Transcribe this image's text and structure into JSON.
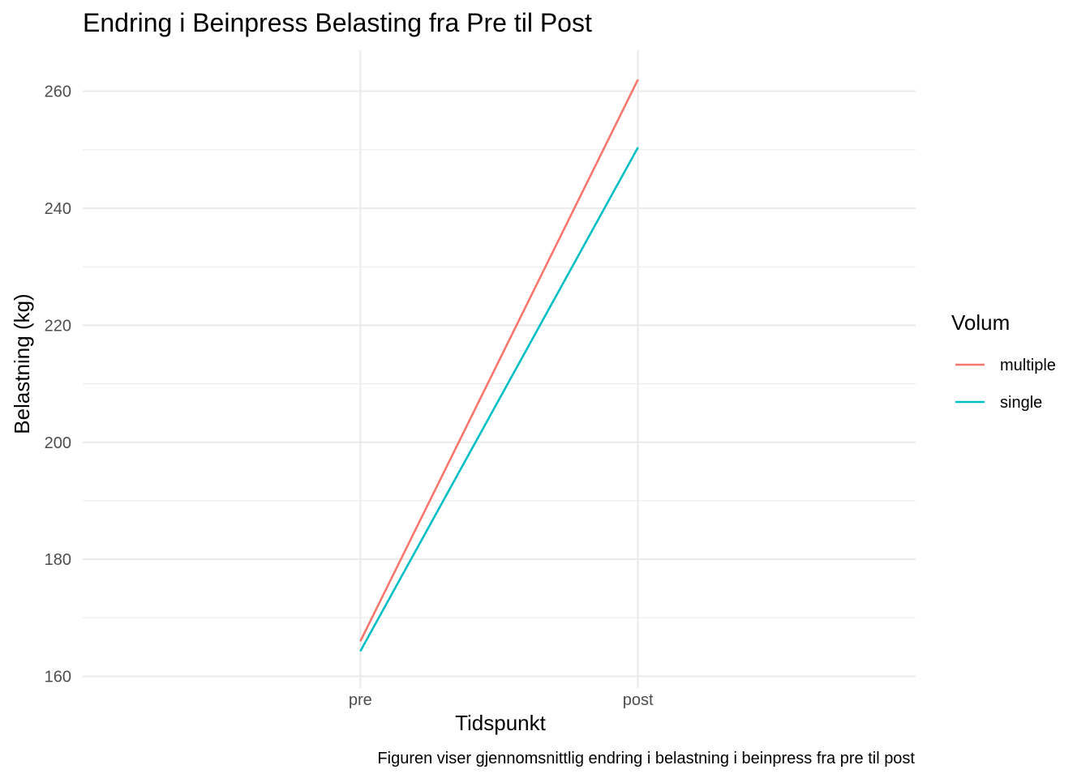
{
  "chart_data": {
    "type": "line",
    "title": "Endring i Beinpress Belasting fra Pre til Post",
    "xlabel": "Tidspunkt",
    "ylabel": "Belastning (kg)",
    "caption": "Figuren viser gjennomsnittlig endring i belastning i beinpress fra pre til post",
    "categories": [
      "pre",
      "post"
    ],
    "ylim": [
      158,
      267
    ],
    "yticks": [
      160,
      180,
      200,
      220,
      240,
      260
    ],
    "grid": true,
    "legend": {
      "title": "Volum",
      "placement": "right"
    },
    "series": [
      {
        "name": "multiple",
        "color": "#F8766D",
        "values": [
          166.0,
          262.0
        ]
      },
      {
        "name": "single",
        "color": "#00BFC4",
        "values": [
          164.3,
          250.4
        ]
      }
    ]
  }
}
